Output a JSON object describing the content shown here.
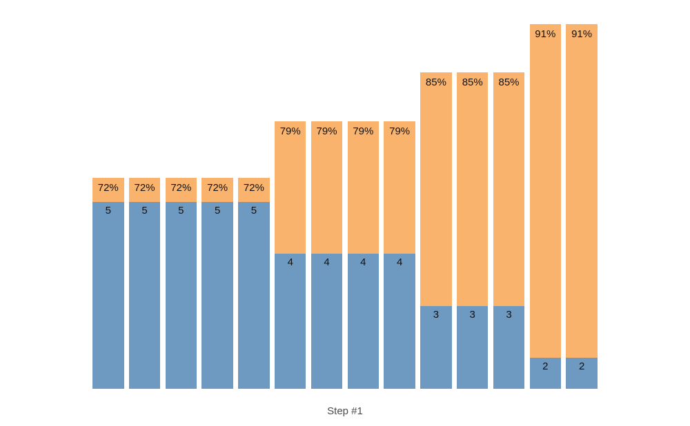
{
  "chart_data": {
    "type": "bar",
    "subtype": "stacked-vertical-columns",
    "title": "",
    "xlabel": "Step #1",
    "ylabel": "",
    "grid": false,
    "legend": null,
    "axes_visible": false,
    "colors": {
      "bottom_segment_blue": "#6e9ac1",
      "top_segment_orange": "#fab36d",
      "bar_label_text": "#111111",
      "xlabel_text": "#4a4a4a",
      "background": "#ffffff"
    },
    "groups": [
      {
        "pct_label": "72%",
        "pct": 72,
        "value_label": "5",
        "value": 5,
        "bar_count": 5
      },
      {
        "pct_label": "79%",
        "pct": 79,
        "value_label": "4",
        "value": 4,
        "bar_count": 4
      },
      {
        "pct_label": "85%",
        "pct": 85,
        "value_label": "3",
        "value": 3,
        "bar_count": 3
      },
      {
        "pct_label": "91%",
        "pct": 91,
        "value_label": "2",
        "value": 2,
        "bar_count": 2
      }
    ],
    "bars": [
      {
        "top_label": "72%",
        "pct": 72,
        "bottom_label": "5",
        "value": 5
      },
      {
        "top_label": "72%",
        "pct": 72,
        "bottom_label": "5",
        "value": 5
      },
      {
        "top_label": "72%",
        "pct": 72,
        "bottom_label": "5",
        "value": 5
      },
      {
        "top_label": "72%",
        "pct": 72,
        "bottom_label": "5",
        "value": 5
      },
      {
        "top_label": "72%",
        "pct": 72,
        "bottom_label": "5",
        "value": 5
      },
      {
        "top_label": "79%",
        "pct": 79,
        "bottom_label": "4",
        "value": 4
      },
      {
        "top_label": "79%",
        "pct": 79,
        "bottom_label": "4",
        "value": 4
      },
      {
        "top_label": "79%",
        "pct": 79,
        "bottom_label": "4",
        "value": 4
      },
      {
        "top_label": "79%",
        "pct": 79,
        "bottom_label": "4",
        "value": 4
      },
      {
        "top_label": "85%",
        "pct": 85,
        "bottom_label": "3",
        "value": 3
      },
      {
        "top_label": "85%",
        "pct": 85,
        "bottom_label": "3",
        "value": 3
      },
      {
        "top_label": "85%",
        "pct": 85,
        "bottom_label": "3",
        "value": 3
      },
      {
        "top_label": "91%",
        "pct": 91,
        "bottom_label": "2",
        "value": 2
      },
      {
        "top_label": "91%",
        "pct": 91,
        "bottom_label": "2",
        "value": 2
      }
    ]
  }
}
